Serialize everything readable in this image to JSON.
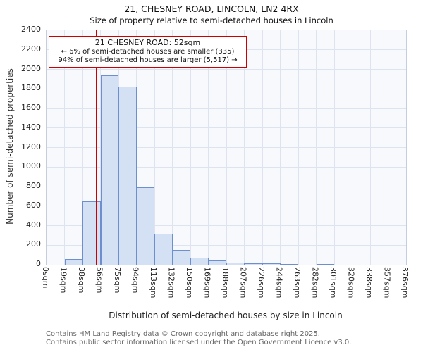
{
  "title": "21, CHESNEY ROAD, LINCOLN, LN2 4RX",
  "subtitle": "Size of property relative to semi-detached houses in Lincoln",
  "chart_data": {
    "type": "bar",
    "title": "21, CHESNEY ROAD, LINCOLN, LN2 4RX",
    "subtitle": "Size of property relative to semi-detached houses in Lincoln",
    "xlabel": "Distribution of semi-detached houses by size in Lincoln",
    "ylabel": "Number of semi-detached properties",
    "ylim": [
      0,
      2400
    ],
    "x_range": [
      0,
      376
    ],
    "grid": true,
    "legend": "none",
    "y_ticks": [
      0,
      200,
      400,
      600,
      800,
      1000,
      1200,
      1400,
      1600,
      1800,
      2000,
      2200,
      2400
    ],
    "categories": [
      "0sqm",
      "19sqm",
      "38sqm",
      "56sqm",
      "75sqm",
      "94sqm",
      "113sqm",
      "132sqm",
      "150sqm",
      "169sqm",
      "188sqm",
      "207sqm",
      "226sqm",
      "244sqm",
      "263sqm",
      "282sqm",
      "301sqm",
      "320sqm",
      "338sqm",
      "357sqm",
      "376sqm"
    ],
    "values": [
      0,
      60,
      650,
      1940,
      1820,
      790,
      320,
      150,
      70,
      40,
      20,
      15,
      15,
      10,
      0,
      8,
      0,
      0,
      0,
      0
    ],
    "bar_fill": "#d4e0f3",
    "bar_border": "#6d8fce",
    "marker": {
      "value_sqm": 52,
      "color": "#cc0000"
    },
    "annotation": {
      "line1": "21 CHESNEY ROAD: 52sqm",
      "line2": "← 6% of semi-detached houses are smaller (335)",
      "line3": "94% of semi-detached houses are larger (5,517) →",
      "border_color": "#cc0000"
    }
  },
  "footer": {
    "line1": "Contains HM Land Registry data © Crown copyright and database right 2025.",
    "line2": "Contains public sector information licensed under the Open Government Licence v3.0."
  }
}
